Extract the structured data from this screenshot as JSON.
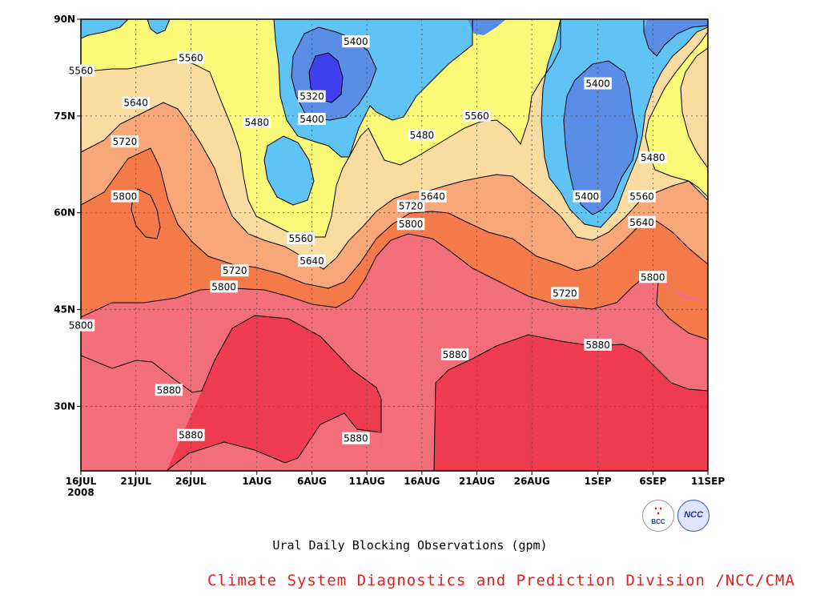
{
  "chart_data": {
    "type": "heatmap",
    "subtype": "filled-contour (time-latitude Hovmoller)",
    "title": "Ural Daily Blocking Observations (gpm)",
    "credit": "Climate System Diagnostics and Prediction Division /NCC/CMA",
    "xlabel": "",
    "ylabel": "",
    "x_axis": {
      "type": "date",
      "range": [
        "2008-07-16",
        "2008-09-11"
      ],
      "ticks": [
        "16JUL",
        "21JUL",
        "26JUL",
        "1AUG",
        "6AUG",
        "11AUG",
        "16AUG",
        "21AUG",
        "26AUG",
        "1SEP",
        "6SEP",
        "11SEP"
      ],
      "tick_dates": [
        "2008-07-16",
        "2008-07-21",
        "2008-07-26",
        "2008-08-01",
        "2008-08-06",
        "2008-08-11",
        "2008-08-16",
        "2008-08-21",
        "2008-08-26",
        "2008-09-01",
        "2008-09-06",
        "2008-09-11"
      ],
      "year_label": "2008"
    },
    "y_axis": {
      "range": [
        20,
        90
      ],
      "ticks": [
        "30N",
        "45N",
        "60N",
        "75N",
        "90N"
      ],
      "tick_values": [
        30,
        45,
        60,
        75,
        90
      ]
    },
    "grid": true,
    "contour_levels": [
      5320,
      5400,
      5480,
      5560,
      5640,
      5720,
      5800,
      5880
    ],
    "level_colors": {
      "below_5320": "#4040f0",
      "5320_5400": "#5a8de6",
      "5400_5480": "#5fc3f5",
      "5480_5560": "#fafa78",
      "5560_5640": "#fadca0",
      "5640_5720": "#f8a878",
      "5720_5800": "#f57a4a",
      "5800_5880": "#f26e7a",
      "above_5880": "#f03c50"
    },
    "contour_labels": [
      {
        "value": "5560",
        "date": "2008-07-16",
        "lat": 82
      },
      {
        "value": "5560",
        "date": "2008-07-26",
        "lat": 84
      },
      {
        "value": "5640",
        "date": "2008-07-21",
        "lat": 77
      },
      {
        "value": "5720",
        "date": "2008-07-20",
        "lat": 71
      },
      {
        "value": "5800",
        "date": "2008-07-20",
        "lat": 62.5
      },
      {
        "value": "5400",
        "date": "2008-08-10",
        "lat": 86.5
      },
      {
        "value": "5320",
        "date": "2008-08-06",
        "lat": 78
      },
      {
        "value": "5400",
        "date": "2008-08-06",
        "lat": 74.5
      },
      {
        "value": "5480",
        "date": "2008-08-01",
        "lat": 74
      },
      {
        "value": "5480",
        "date": "2008-08-16",
        "lat": 72
      },
      {
        "value": "5560",
        "date": "2008-08-21",
        "lat": 75
      },
      {
        "value": "5640",
        "date": "2008-08-17",
        "lat": 62.5
      },
      {
        "value": "5720",
        "date": "2008-08-15",
        "lat": 61
      },
      {
        "value": "5800",
        "date": "2008-08-15",
        "lat": 58.2
      },
      {
        "value": "5560",
        "date": "2008-08-05",
        "lat": 56
      },
      {
        "value": "5640",
        "date": "2008-08-06",
        "lat": 52.5
      },
      {
        "value": "5720",
        "date": "2008-07-30",
        "lat": 51
      },
      {
        "value": "5800",
        "date": "2008-07-29",
        "lat": 48.5
      },
      {
        "value": "5800",
        "date": "2008-07-16",
        "lat": 42.5
      },
      {
        "value": "5880",
        "date": "2008-07-24",
        "lat": 32.5
      },
      {
        "value": "5880",
        "date": "2008-07-26",
        "lat": 25.5
      },
      {
        "value": "5880",
        "date": "2008-08-10",
        "lat": 25
      },
      {
        "value": "5880",
        "date": "2008-08-19",
        "lat": 38
      },
      {
        "value": "5880",
        "date": "2008-09-01",
        "lat": 39.5
      },
      {
        "value": "5720",
        "date": "2008-08-29",
        "lat": 47.5
      },
      {
        "value": "5800",
        "date": "2008-09-06",
        "lat": 50
      },
      {
        "value": "5640",
        "date": "2008-09-05",
        "lat": 58.5
      },
      {
        "value": "5560",
        "date": "2008-09-05",
        "lat": 62.5
      },
      {
        "value": "5480",
        "date": "2008-09-06",
        "lat": 68.5
      },
      {
        "value": "5400",
        "date": "2008-09-01",
        "lat": 80
      },
      {
        "value": "5400",
        "date": "2008-08-31",
        "lat": 62.5
      }
    ]
  },
  "logos": {
    "bcc": "BCC",
    "ncc": "NCC"
  }
}
